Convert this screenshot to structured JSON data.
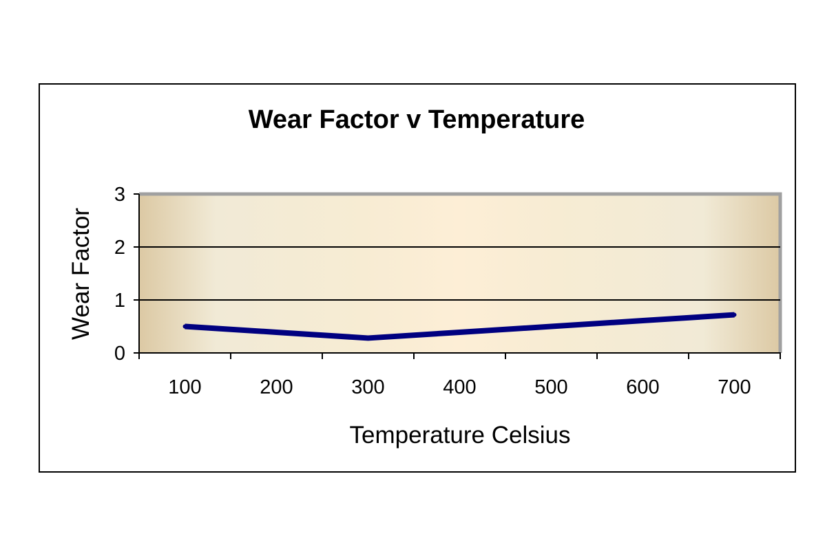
{
  "colors": {
    "line": "#000080",
    "plot_edge": "#f7ecd3",
    "plot_center": "#fdeed6",
    "plot_mid": "#f1ead6",
    "plot_dark": "#dcc9a4",
    "plot_border": "#a0a0a0",
    "frame": "#000000",
    "gridline": "#000000"
  },
  "chart_data": {
    "type": "line",
    "title": "Wear Factor v Temperature",
    "xlabel": "Temperature Celsius",
    "ylabel": "Wear Factor",
    "categories": [
      "100",
      "200",
      "300",
      "400",
      "500",
      "600",
      "700"
    ],
    "series": [
      {
        "values": [
          0.5,
          0.39,
          0.28,
          0.39,
          0.5,
          0.61,
          0.72
        ]
      }
    ],
    "ylim": [
      0,
      3
    ],
    "yticks": [
      0,
      1,
      2,
      3
    ],
    "grid": "horizontal",
    "legend": "none"
  }
}
